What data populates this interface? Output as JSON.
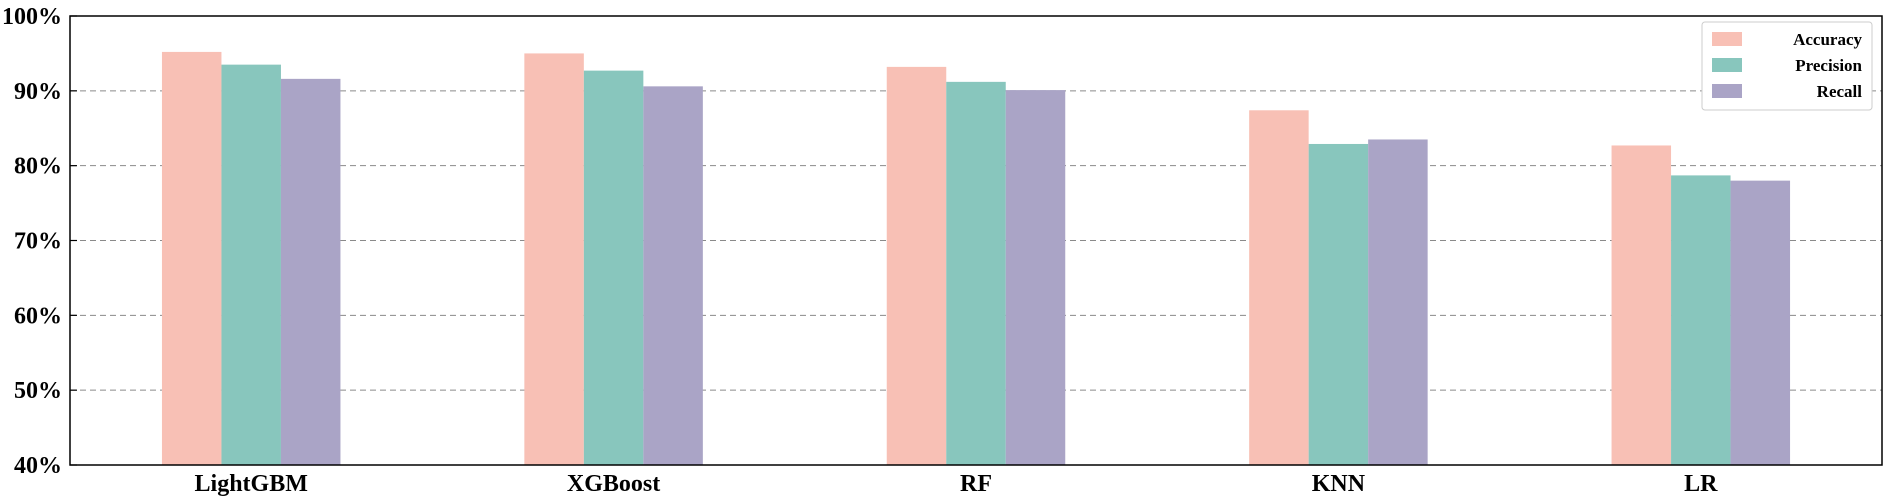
{
  "chart_data": {
    "type": "bar",
    "title": "",
    "xlabel": "",
    "ylabel": "",
    "categories": [
      "LightGBM",
      "XGBoost",
      "RF",
      "KNN",
      "LR"
    ],
    "series": [
      {
        "name": "Accuracy",
        "color": "#f8c0b5",
        "values": [
          95.2,
          95.0,
          93.2,
          87.4,
          82.7
        ]
      },
      {
        "name": "Precision",
        "color": "#88c6bd",
        "values": [
          93.5,
          92.7,
          91.2,
          82.9,
          78.7
        ]
      },
      {
        "name": "Recall",
        "color": "#aaa4c6",
        "values": [
          91.6,
          90.6,
          90.1,
          83.5,
          78.0
        ]
      }
    ],
    "ylim": [
      40,
      100
    ],
    "yticks": [
      40,
      50,
      60,
      70,
      80,
      90,
      100
    ],
    "ytick_labels": [
      "40%",
      "50%",
      "60%",
      "70%",
      "80%",
      "90%",
      "100%"
    ],
    "grid": true,
    "grid_style": "dashed",
    "legend_position": "top-right"
  }
}
